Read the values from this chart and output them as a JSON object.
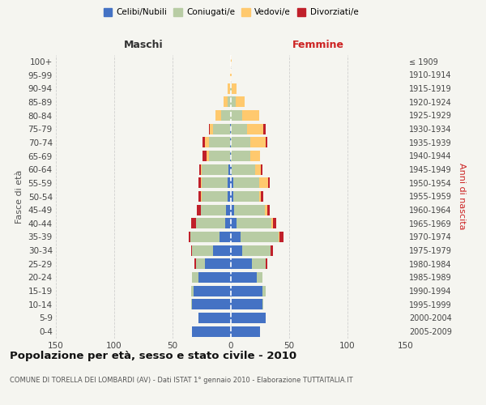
{
  "age_groups": [
    "100+",
    "95-99",
    "90-94",
    "85-89",
    "80-84",
    "75-79",
    "70-74",
    "65-69",
    "60-64",
    "55-59",
    "50-54",
    "45-49",
    "40-44",
    "35-39",
    "30-34",
    "25-29",
    "20-24",
    "15-19",
    "10-14",
    "5-9",
    "0-4"
  ],
  "birth_years": [
    "≤ 1909",
    "1910-1914",
    "1915-1919",
    "1920-1924",
    "1925-1929",
    "1930-1934",
    "1935-1939",
    "1940-1944",
    "1945-1949",
    "1950-1954",
    "1955-1959",
    "1960-1964",
    "1965-1969",
    "1970-1974",
    "1975-1979",
    "1980-1984",
    "1985-1989",
    "1990-1994",
    "1995-1999",
    "2000-2004",
    "2005-2009"
  ],
  "colors": {
    "celibi": "#4472c4",
    "coniugati": "#b8cca4",
    "vedovi": "#ffc96e",
    "divorziati": "#c0202a"
  },
  "males": {
    "celibi": [
      0,
      0,
      0,
      0,
      0,
      1,
      1,
      1,
      2,
      3,
      3,
      4,
      5,
      10,
      15,
      22,
      28,
      32,
      33,
      28,
      33
    ],
    "coniugati": [
      0,
      0,
      1,
      3,
      8,
      14,
      18,
      18,
      23,
      22,
      22,
      22,
      25,
      25,
      18,
      8,
      5,
      2,
      1,
      0,
      0
    ],
    "vedovi": [
      0,
      1,
      2,
      3,
      5,
      3,
      3,
      2,
      1,
      1,
      1,
      0,
      0,
      0,
      0,
      0,
      0,
      0,
      0,
      0,
      0
    ],
    "divorziati": [
      0,
      0,
      0,
      0,
      0,
      1,
      2,
      3,
      1,
      2,
      2,
      3,
      4,
      1,
      1,
      1,
      0,
      0,
      0,
      0,
      0
    ]
  },
  "females": {
    "celibi": [
      0,
      0,
      0,
      0,
      0,
      0,
      0,
      0,
      1,
      2,
      2,
      3,
      5,
      8,
      10,
      18,
      22,
      27,
      27,
      30,
      25
    ],
    "coniugati": [
      0,
      0,
      1,
      4,
      10,
      14,
      17,
      17,
      20,
      22,
      22,
      26,
      30,
      33,
      24,
      12,
      5,
      3,
      1,
      0,
      0
    ],
    "vedovi": [
      1,
      1,
      4,
      8,
      14,
      14,
      13,
      8,
      5,
      8,
      2,
      2,
      1,
      1,
      0,
      0,
      0,
      0,
      0,
      0,
      0
    ],
    "divorziati": [
      0,
      0,
      0,
      0,
      0,
      2,
      1,
      0,
      1,
      1,
      2,
      2,
      3,
      3,
      2,
      1,
      0,
      0,
      0,
      0,
      0
    ]
  },
  "title": "Popolazione per età, sesso e stato civile - 2010",
  "subtitle": "COMUNE DI TORELLA DEI LOMBARDI (AV) - Dati ISTAT 1° gennaio 2010 - Elaborazione TUTTAITALIA.IT",
  "label_maschi": "Maschi",
  "label_femmine": "Femmine",
  "ylabel_left": "Fasce di età",
  "ylabel_right": "Anni di nascita",
  "legend_labels": [
    "Celibi/Nubili",
    "Coniugati/e",
    "Vedovi/e",
    "Divorziati/e"
  ],
  "xlim": 150,
  "bg_color": "#f5f5f0",
  "grid_color": "#cccccc",
  "maschi_color": "#333333",
  "femmine_color": "#cc2222",
  "right_label_color": "#cc2222"
}
